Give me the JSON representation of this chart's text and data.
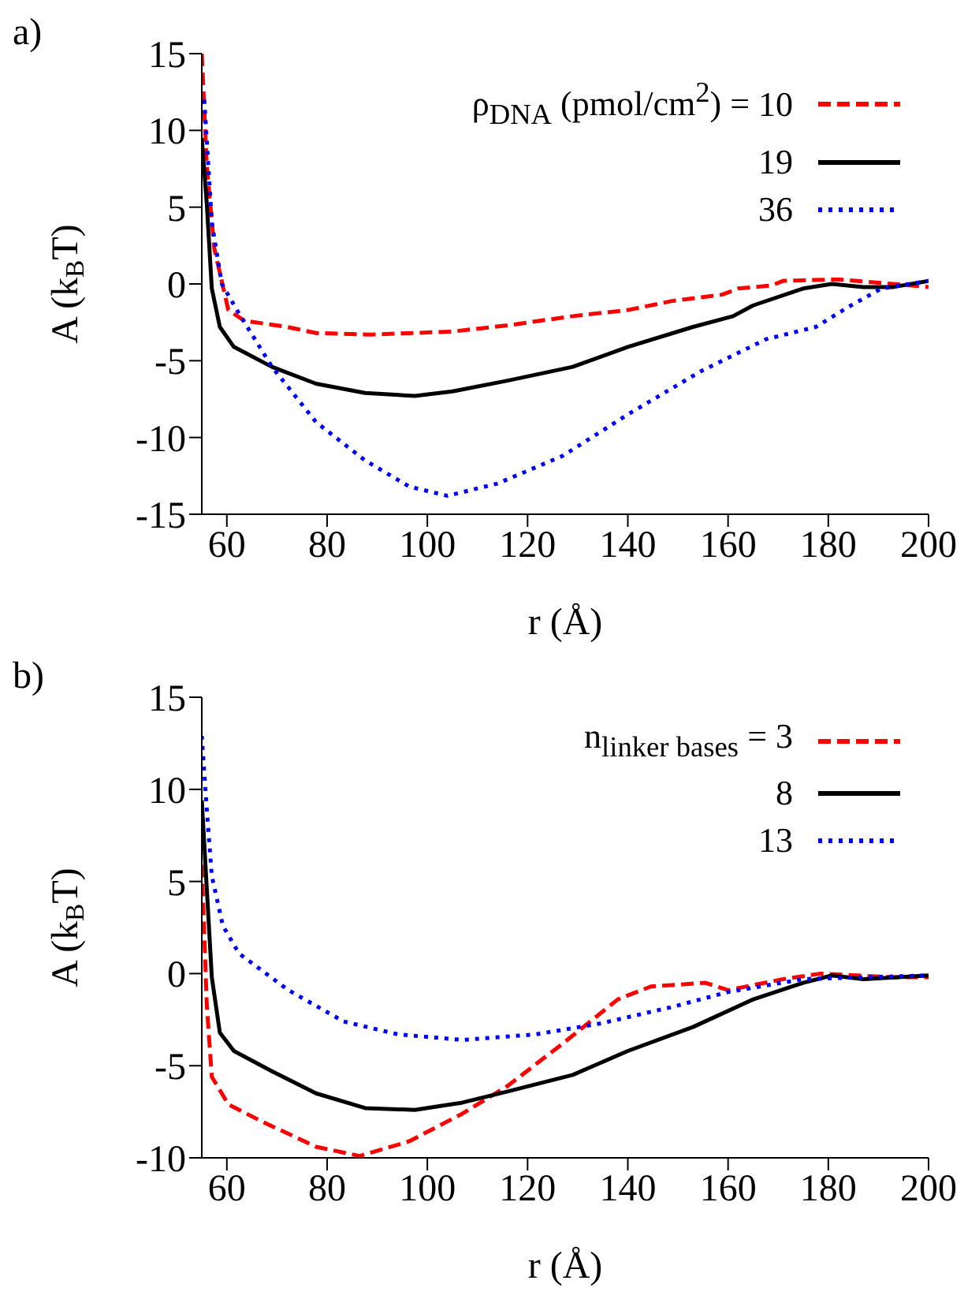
{
  "chart_data": [
    {
      "type": "line",
      "title": "a)",
      "xlabel": "r (Å)",
      "ylabel": "A (k$_{B}$T)",
      "legend_title": "ρ$_{DNA}$ (pmol/cm$^{2}$) =",
      "legend": "top right",
      "xlim": [
        55,
        200
      ],
      "xticks": [
        60,
        80,
        100,
        120,
        140,
        160,
        180,
        200
      ],
      "ylim": [
        -15,
        15
      ],
      "yticks": [
        -15,
        -10,
        -5,
        0,
        5,
        10,
        15
      ],
      "series": [
        {
          "name": "10",
          "color": "#ff0000",
          "line_style": "dashed",
          "x": [
            55,
            56,
            57.5,
            60.3,
            63.5,
            72,
            77.8,
            88.7,
            105,
            116,
            129,
            140,
            149,
            158.8,
            162,
            168.7,
            171,
            182,
            193,
            200
          ],
          "values": [
            15,
            7.7,
            2.3,
            -1.7,
            -2.4,
            -2.8,
            -3.2,
            -3.3,
            -3.1,
            -2.7,
            -2.1,
            -1.7,
            -1.1,
            -0.7,
            -0.3,
            -0.1,
            0.2,
            0.3,
            0,
            -0.2
          ]
        },
        {
          "name": "19",
          "color": "#000000",
          "line_style": "solid",
          "x": [
            55,
            56,
            57,
            58.6,
            61.4,
            69,
            77.8,
            87.6,
            97.5,
            105,
            116,
            129,
            140,
            153,
            161,
            165,
            175,
            180.7,
            187,
            193,
            200
          ],
          "values": [
            9.5,
            5.2,
            -0.3,
            -2.8,
            -4.1,
            -5.4,
            -6.5,
            -7.1,
            -7.3,
            -7,
            -6.3,
            -5.4,
            -4.1,
            -2.8,
            -2.1,
            -1.4,
            -0.3,
            0,
            -0.2,
            -0.2,
            0.2
          ]
        },
        {
          "name": "36",
          "color": "#0000ff",
          "line_style": "dotted",
          "x": [
            55.5,
            57,
            59,
            62,
            69,
            77.8,
            87.6,
            96.4,
            104,
            114,
            127,
            140,
            154.5,
            167.6,
            177.5,
            184,
            190.6,
            200
          ],
          "values": [
            12,
            4,
            0,
            -1.7,
            -5.4,
            -9,
            -11.5,
            -13.2,
            -13.8,
            -13,
            -11.2,
            -8.5,
            -5.7,
            -3.6,
            -2.8,
            -1.5,
            -0.3,
            0.2
          ]
        }
      ]
    },
    {
      "type": "line",
      "title": "b)",
      "xlabel": "r (Å)",
      "ylabel": "A (k$_{B}$T)",
      "legend_title": "n$_{linker bases}$ =",
      "legend": "top right",
      "xlim": [
        55,
        200
      ],
      "xticks": [
        60,
        80,
        100,
        120,
        140,
        160,
        180,
        200
      ],
      "ylim": [
        -10,
        15
      ],
      "yticks": [
        -10,
        -5,
        0,
        5,
        10,
        15
      ],
      "series": [
        {
          "name": "3",
          "color": "#ff0000",
          "line_style": "dashed",
          "x": [
            55,
            56,
            57,
            60.3,
            66.8,
            77.8,
            86.5,
            96.4,
            107,
            116,
            127,
            138,
            144.6,
            155.5,
            160,
            171,
            178.5,
            193,
            200
          ],
          "values": [
            5.9,
            -1.7,
            -5.6,
            -7.1,
            -8,
            -9.4,
            -9.9,
            -9.1,
            -7.6,
            -6.1,
            -3.8,
            -1.4,
            -0.7,
            -0.5,
            -0.9,
            -0.3,
            0,
            -0.2,
            -0.2
          ]
        },
        {
          "name": "8",
          "color": "#000000",
          "line_style": "solid",
          "x": [
            55,
            57,
            58.6,
            61.4,
            69,
            77.8,
            87.6,
            97.5,
            107,
            116,
            129,
            140,
            153,
            165,
            175,
            180.7,
            187,
            200
          ],
          "values": [
            9.4,
            -0.2,
            -3.2,
            -4.2,
            -5.3,
            -6.5,
            -7.3,
            -7.4,
            -7,
            -6.4,
            -5.5,
            -4.2,
            -2.9,
            -1.4,
            -0.5,
            -0.1,
            -0.3,
            -0.1
          ]
        },
        {
          "name": "13",
          "color": "#0000ff",
          "line_style": "dotted",
          "x": [
            55,
            56,
            57,
            59.2,
            62.4,
            72.3,
            83.3,
            94.2,
            107,
            121.6,
            134.7,
            149,
            160,
            175,
            200
          ],
          "values": [
            12.9,
            8.9,
            5.3,
            2.6,
            1.1,
            -0.9,
            -2.6,
            -3.3,
            -3.6,
            -3.3,
            -2.7,
            -1.8,
            -1,
            -0.3,
            -0.1
          ]
        }
      ]
    }
  ]
}
